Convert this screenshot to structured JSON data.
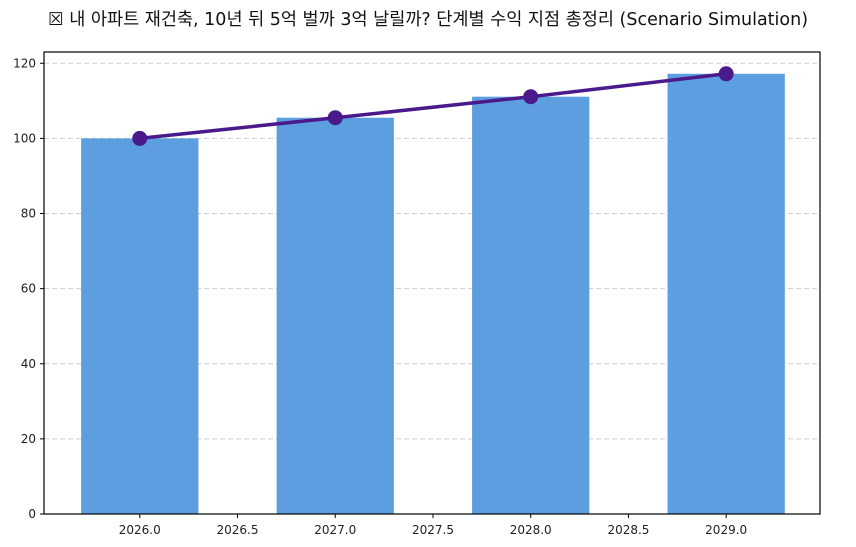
{
  "chart_data": {
    "type": "bar",
    "title": "☒ 내 아파트 재건축, 10년 뒤 5억 벌까 3억 날릴까? 단계별 수익 지점 총정리 (Scenario Simulation)",
    "xlabel": "",
    "ylabel": "",
    "categories": [
      2026,
      2027,
      2028,
      2029
    ],
    "series": [
      {
        "name": "bars",
        "type": "bar",
        "values": [
          100,
          105.5,
          111.1,
          117.2
        ],
        "color": "#5C9EDF"
      },
      {
        "name": "line",
        "type": "line",
        "values": [
          100,
          105.5,
          111.1,
          117.2
        ],
        "color": "#4A1A8C",
        "marker": "circle"
      }
    ],
    "xlim": [
      2025.51,
      2029.48
    ],
    "ylim": [
      0,
      123
    ],
    "x_ticks": [
      "2026.0",
      "2026.5",
      "2027.0",
      "2027.5",
      "2028.0",
      "2028.5",
      "2029.0"
    ],
    "y_ticks": [
      "0",
      "20",
      "40",
      "60",
      "80",
      "100",
      "120"
    ],
    "bar_width": 0.6,
    "grid": {
      "axis": "y",
      "style": "dashed",
      "color": "#d0d0d0"
    },
    "legend": null
  }
}
